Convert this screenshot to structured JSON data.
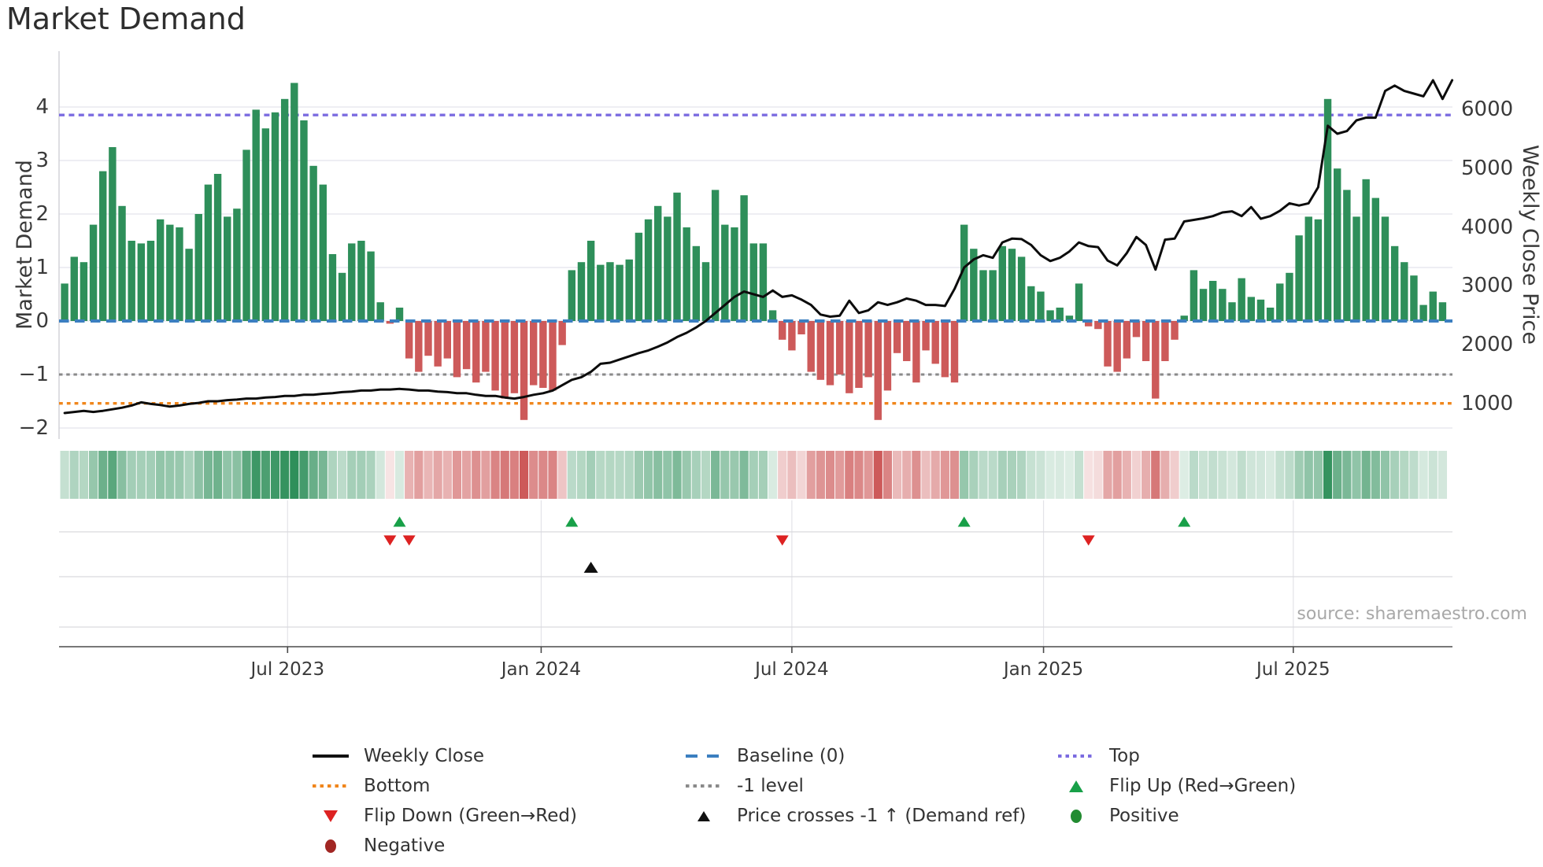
{
  "title": "Market Demand",
  "source": "source: sharemaestro.com",
  "chart_data": {
    "type": "bar",
    "subtype": "combo: weekly demand bars + weekly close line + heatmap strip + event markers",
    "title": "Market Demand",
    "xlabel": "",
    "ylabel": "Market Demand",
    "ylabel_right": "Weekly Close Price",
    "x_axis": {
      "tick_labels": [
        "Jul 2023",
        "Jan 2024",
        "Jul 2024",
        "Jan 2025",
        "Jul 2025"
      ],
      "tick_weeks": [
        23.3,
        49.8,
        76.0,
        102.3,
        128.4
      ],
      "weeks_total": 145
    },
    "left_axis": {
      "ticks": [
        4,
        3,
        2,
        1,
        0,
        -1,
        -2
      ],
      "range": [
        -2.2,
        5.05
      ]
    },
    "right_axis": {
      "ticks": [
        1000,
        2000,
        3000,
        4000,
        5000,
        6000
      ],
      "range": [
        -2.2,
        5.05
      ]
    },
    "reference_lines": {
      "top": 3.85,
      "baseline": 0,
      "minus1_level": -1,
      "bottom": -1.54
    },
    "grid": true,
    "legend_position": "below",
    "series": [
      {
        "name": "Market Demand (weekly bars)",
        "axis": "left",
        "values": [
          0.7,
          1.2,
          1.1,
          1.8,
          2.8,
          3.25,
          2.15,
          1.5,
          1.45,
          1.5,
          1.9,
          1.8,
          1.75,
          1.35,
          2.0,
          2.55,
          2.75,
          1.95,
          2.1,
          3.2,
          3.95,
          3.6,
          3.9,
          4.15,
          4.45,
          3.75,
          2.9,
          2.55,
          1.25,
          0.9,
          1.45,
          1.5,
          1.3,
          0.35,
          -0.05,
          0.25,
          -0.7,
          -0.95,
          -0.65,
          -0.85,
          -0.7,
          -1.05,
          -0.9,
          -1.15,
          -0.95,
          -1.3,
          -1.45,
          -1.35,
          -1.85,
          -1.2,
          -1.25,
          -1.3,
          -0.45,
          0.95,
          1.1,
          1.5,
          1.05,
          1.1,
          1.05,
          1.15,
          1.65,
          1.9,
          2.15,
          1.95,
          2.4,
          1.75,
          1.4,
          1.1,
          2.45,
          1.8,
          1.75,
          2.35,
          1.45,
          1.45,
          0.2,
          -0.35,
          -0.55,
          -0.25,
          -0.95,
          -1.1,
          -1.2,
          -1.0,
          -1.35,
          -1.25,
          -1.05,
          -1.85,
          -1.3,
          -0.6,
          -0.75,
          -1.15,
          -0.55,
          -0.8,
          -1.05,
          -1.15,
          1.8,
          1.35,
          0.95,
          0.95,
          1.4,
          1.35,
          1.2,
          0.65,
          0.55,
          0.2,
          0.25,
          0.1,
          0.7,
          -0.1,
          -0.15,
          -0.85,
          -0.95,
          -0.7,
          -0.3,
          -0.75,
          -1.45,
          -0.75,
          -0.35,
          0.1,
          0.95,
          0.6,
          0.75,
          0.6,
          0.35,
          0.8,
          0.45,
          0.4,
          0.25,
          0.7,
          0.9,
          1.6,
          1.95,
          1.9,
          4.15,
          2.85,
          2.45,
          1.95,
          2.65,
          2.3,
          1.95,
          1.4,
          1.1,
          0.85,
          0.3,
          0.55,
          0.35
        ]
      },
      {
        "name": "Weekly Close",
        "axis": "right",
        "values": [
          840,
          859,
          877,
          859,
          877,
          904,
          931,
          968,
          1022,
          995,
          977,
          950,
          968,
          995,
          1013,
          1041,
          1041,
          1059,
          1068,
          1086,
          1086,
          1104,
          1113,
          1131,
          1131,
          1150,
          1150,
          1168,
          1177,
          1195,
          1204,
          1222,
          1222,
          1240,
          1240,
          1250,
          1240,
          1222,
          1222,
          1204,
          1195,
          1177,
          1177,
          1150,
          1131,
          1131,
          1104,
          1086,
          1113,
          1150,
          1177,
          1222,
          1313,
          1404,
          1450,
          1541,
          1677,
          1695,
          1750,
          1804,
          1859,
          1904,
          1968,
          2040,
          2131,
          2204,
          2295,
          2404,
          2540,
          2677,
          2813,
          2904,
          2859,
          2813,
          2922,
          2813,
          2840,
          2768,
          2677,
          2513,
          2477,
          2495,
          2749,
          2540,
          2586,
          2722,
          2677,
          2722,
          2786,
          2749,
          2677,
          2677,
          2659,
          2949,
          3313,
          3449,
          3522,
          3477,
          3740,
          3804,
          3795,
          3695,
          3522,
          3422,
          3477,
          3586,
          3740,
          3677,
          3659,
          3431,
          3349,
          3558,
          3831,
          3695,
          3277,
          3786,
          3804,
          4095,
          4122,
          4149,
          4186,
          4249,
          4267,
          4186,
          4340,
          4140,
          4186,
          4277,
          4404,
          4367,
          4404,
          4677,
          5722,
          5586,
          5631,
          5813,
          5858,
          5858,
          6313,
          6404,
          6313,
          6267,
          6222,
          6495,
          6177,
          6495
        ]
      }
    ],
    "markers": {
      "flip_up_weeks": [
        35,
        53,
        94,
        117
      ],
      "flip_down_weeks": [
        34,
        36,
        75,
        107
      ],
      "price_cross_up_weeks": [
        55
      ]
    },
    "heatmap": "strip below chart; cell color = sign/intensity of weekly demand bar value",
    "colors": {
      "bar_positive": "#2e8f5a",
      "bar_negative": "#cd5a5a",
      "price_line": "#0c0c0c",
      "baseline": "#3b7fc0",
      "top_line": "#7b6be0",
      "bottom_line": "#f0861c",
      "minus1_line": "#8a8a8a",
      "flip_up": "#18a048",
      "flip_down": "#dd2222",
      "cross_marker": "#111111",
      "positive_dot": "#228b31",
      "negative_dot": "#a12623"
    }
  },
  "legend": {
    "items": [
      {
        "icon": "black-line",
        "label": "Weekly Close"
      },
      {
        "icon": "blue-dashed-line",
        "label": "Baseline (0)"
      },
      {
        "icon": "purple-dotted-line",
        "label": "Top"
      },
      {
        "icon": "orange-dotted-line",
        "label": "Bottom"
      },
      {
        "icon": "gray-dotted-line",
        "label": "-1 level"
      },
      {
        "icon": "green-triangle-up",
        "label": "Flip Up (Red→Green)"
      },
      {
        "icon": "red-triangle-down",
        "label": "Flip Down (Green→Red)"
      },
      {
        "icon": "black-triangle-up",
        "label": "Price crosses -1 ↑ (Demand ref)"
      },
      {
        "icon": "green-circle",
        "label": "Positive"
      },
      {
        "icon": "dark-red-circle",
        "label": "Negative"
      }
    ]
  }
}
